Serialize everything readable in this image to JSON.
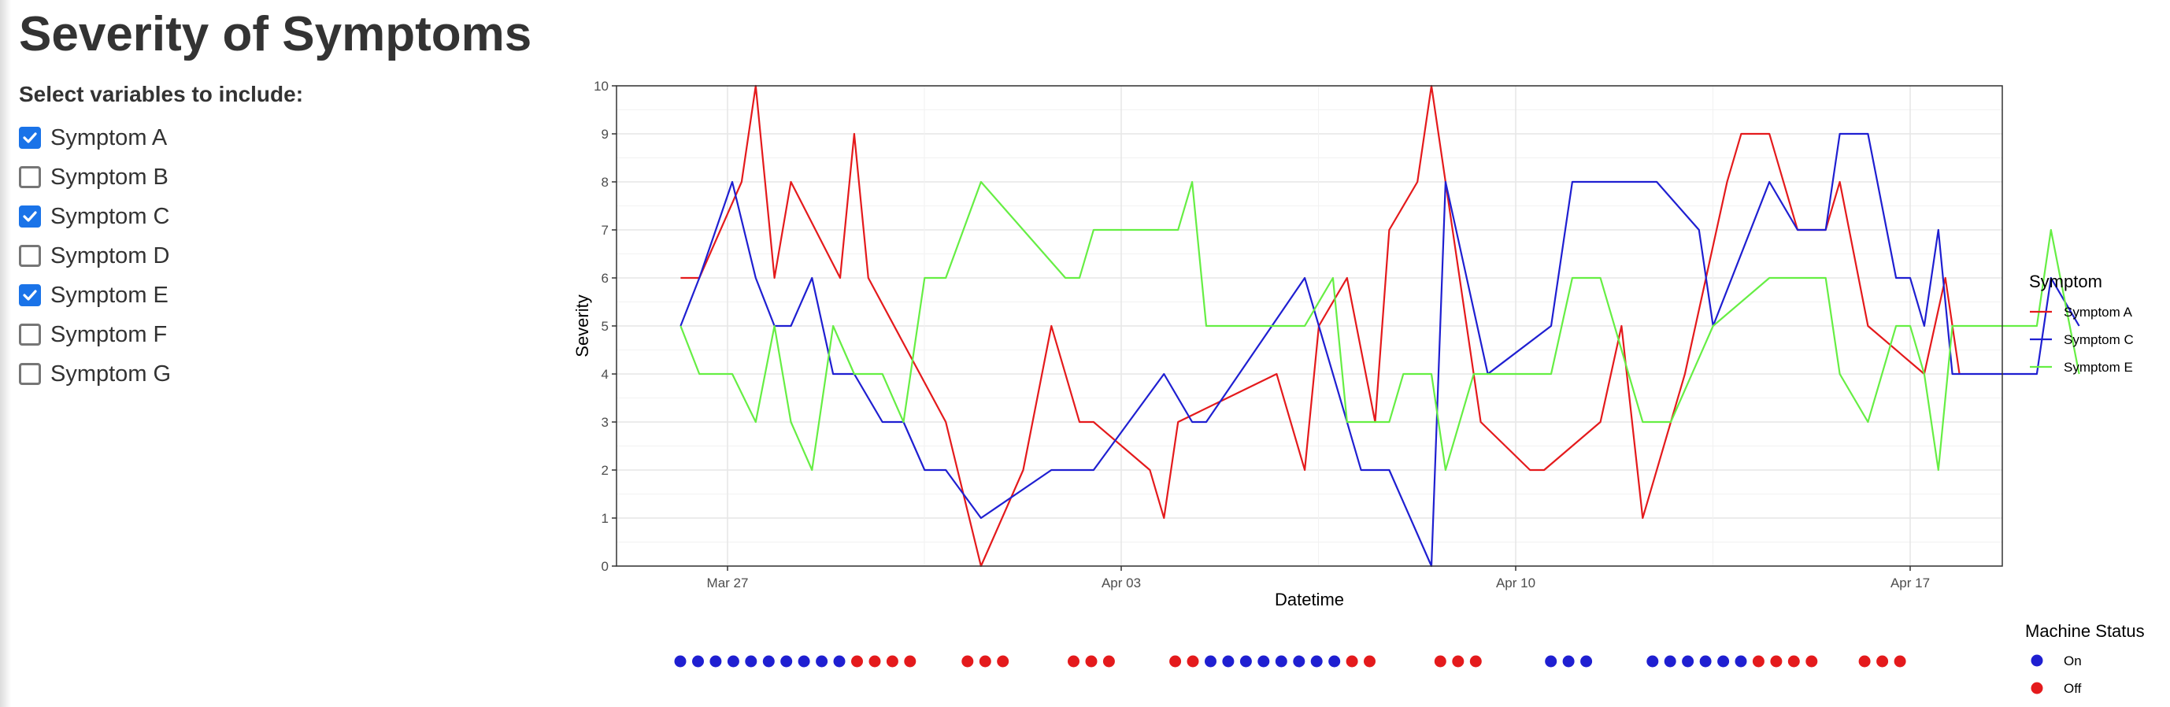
{
  "page": {
    "title": "Severity of Symptoms",
    "select_label": "Select variables to include:"
  },
  "checkboxes": [
    {
      "label": "Symptom A",
      "checked": true
    },
    {
      "label": "Symptom B",
      "checked": false
    },
    {
      "label": "Symptom C",
      "checked": true
    },
    {
      "label": "Symptom D",
      "checked": false
    },
    {
      "label": "Symptom E",
      "checked": true
    },
    {
      "label": "Symptom F",
      "checked": false
    },
    {
      "label": "Symptom G",
      "checked": false
    }
  ],
  "chart_data": [
    {
      "type": "line",
      "xlabel": "Datetime",
      "ylabel": "Severity",
      "x_ticks": [
        "Mar 27",
        "Apr 03",
        "Apr 10",
        "Apr 17"
      ],
      "y_ticks": [
        0,
        1,
        2,
        3,
        4,
        5,
        6,
        7,
        8,
        9,
        10
      ],
      "ylim": [
        0,
        10
      ],
      "grid": true,
      "legend_title": "Symptom",
      "legend_position": "right",
      "series": [
        {
          "name": "Symptom A",
          "color": "#e41a1c",
          "points": [
            [
              "2024-03-26 04:00",
              6
            ],
            [
              "2024-03-26 12:00",
              6
            ],
            [
              "2024-03-27 06:00",
              8
            ],
            [
              "2024-03-27 12:00",
              10
            ],
            [
              "2024-03-27 20:00",
              6
            ],
            [
              "2024-03-28 03:00",
              8
            ],
            [
              "2024-03-29 00:00",
              6
            ],
            [
              "2024-03-29 06:00",
              9
            ],
            [
              "2024-03-29 12:00",
              6
            ],
            [
              "2024-03-30 21:00",
              3
            ],
            [
              "2024-03-31 12:00",
              0
            ],
            [
              "2024-04-01 06:00",
              2
            ],
            [
              "2024-04-01 18:00",
              5
            ],
            [
              "2024-04-02 06:00",
              3
            ],
            [
              "2024-04-02 12:00",
              3
            ],
            [
              "2024-04-03 12:00",
              2
            ],
            [
              "2024-04-03 18:00",
              1
            ],
            [
              "2024-04-04 00:00",
              3
            ],
            [
              "2024-04-05 18:00",
              4
            ],
            [
              "2024-04-06 06:00",
              2
            ],
            [
              "2024-04-06 12:00",
              5
            ],
            [
              "2024-04-07 00:00",
              6
            ],
            [
              "2024-04-07 12:00",
              3
            ],
            [
              "2024-04-07 18:00",
              7
            ],
            [
              "2024-04-08 06:00",
              8
            ],
            [
              "2024-04-08 12:00",
              10
            ],
            [
              "2024-04-09 09:00",
              3
            ],
            [
              "2024-04-10 06:00",
              2
            ],
            [
              "2024-04-10 12:00",
              2
            ],
            [
              "2024-04-11 12:00",
              3
            ],
            [
              "2024-04-11 21:00",
              5
            ],
            [
              "2024-04-12 06:00",
              1
            ],
            [
              "2024-04-13 00:00",
              4
            ],
            [
              "2024-04-13 18:00",
              8
            ],
            [
              "2024-04-14 00:00",
              9
            ],
            [
              "2024-04-14 12:00",
              9
            ],
            [
              "2024-04-15 00:00",
              7
            ],
            [
              "2024-04-15 12:00",
              7
            ],
            [
              "2024-04-15 18:00",
              8
            ],
            [
              "2024-04-16 06:00",
              5
            ],
            [
              "2024-04-17 06:00",
              4
            ],
            [
              "2024-04-17 15:00",
              6
            ],
            [
              "2024-04-17 21:00",
              4
            ]
          ]
        },
        {
          "name": "Symptom C",
          "color": "#1f1fd1",
          "points": [
            [
              "2024-03-26 04:00",
              5
            ],
            [
              "2024-03-26 12:00",
              6
            ],
            [
              "2024-03-27 02:00",
              8
            ],
            [
              "2024-03-27 12:00",
              6
            ],
            [
              "2024-03-27 20:00",
              5
            ],
            [
              "2024-03-28 03:00",
              5
            ],
            [
              "2024-03-28 12:00",
              6
            ],
            [
              "2024-03-28 21:00",
              4
            ],
            [
              "2024-03-29 06:00",
              4
            ],
            [
              "2024-03-29 18:00",
              3
            ],
            [
              "2024-03-30 03:00",
              3
            ],
            [
              "2024-03-30 12:00",
              2
            ],
            [
              "2024-03-30 21:00",
              2
            ],
            [
              "2024-03-31 12:00",
              1
            ],
            [
              "2024-04-01 18:00",
              2
            ],
            [
              "2024-04-02 12:00",
              2
            ],
            [
              "2024-04-03 18:00",
              4
            ],
            [
              "2024-04-04 06:00",
              3
            ],
            [
              "2024-04-04 12:00",
              3
            ],
            [
              "2024-04-06 06:00",
              6
            ],
            [
              "2024-04-07 00:00",
              3
            ],
            [
              "2024-04-07 06:00",
              2
            ],
            [
              "2024-04-07 18:00",
              2
            ],
            [
              "2024-04-08 12:00",
              0
            ],
            [
              "2024-04-08 18:00",
              8
            ],
            [
              "2024-04-09 12:00",
              4
            ],
            [
              "2024-04-10 15:00",
              5
            ],
            [
              "2024-04-11 00:00",
              8
            ],
            [
              "2024-04-12 12:00",
              8
            ],
            [
              "2024-04-13 06:00",
              7
            ],
            [
              "2024-04-13 12:00",
              5
            ],
            [
              "2024-04-14 12:00",
              8
            ],
            [
              "2024-04-15 00:00",
              7
            ],
            [
              "2024-04-15 12:00",
              7
            ],
            [
              "2024-04-15 18:00",
              9
            ],
            [
              "2024-04-16 06:00",
              9
            ],
            [
              "2024-04-16 18:00",
              6
            ],
            [
              "2024-04-17 00:00",
              6
            ],
            [
              "2024-04-17 06:00",
              5
            ],
            [
              "2024-04-17 12:00",
              7
            ],
            [
              "2024-04-17 18:00",
              4
            ],
            [
              "2024-04-19 06:00",
              4
            ],
            [
              "2024-04-19 12:00",
              6
            ],
            [
              "2024-04-20 00:00",
              5
            ]
          ]
        },
        {
          "name": "Symptom E",
          "color": "#66ee44",
          "points": [
            [
              "2024-03-26 04:00",
              5
            ],
            [
              "2024-03-26 12:00",
              4
            ],
            [
              "2024-03-27 02:00",
              4
            ],
            [
              "2024-03-27 12:00",
              3
            ],
            [
              "2024-03-27 20:00",
              5
            ],
            [
              "2024-03-28 03:00",
              3
            ],
            [
              "2024-03-28 12:00",
              2
            ],
            [
              "2024-03-28 21:00",
              5
            ],
            [
              "2024-03-29 06:00",
              4
            ],
            [
              "2024-03-29 18:00",
              4
            ],
            [
              "2024-03-30 03:00",
              3
            ],
            [
              "2024-03-30 12:00",
              6
            ],
            [
              "2024-03-30 21:00",
              6
            ],
            [
              "2024-03-31 12:00",
              8
            ],
            [
              "2024-04-02 00:00",
              6
            ],
            [
              "2024-04-02 06:00",
              6
            ],
            [
              "2024-04-02 12:00",
              7
            ],
            [
              "2024-04-04 00:00",
              7
            ],
            [
              "2024-04-04 06:00",
              8
            ],
            [
              "2024-04-04 12:00",
              5
            ],
            [
              "2024-04-06 06:00",
              5
            ],
            [
              "2024-04-06 18:00",
              6
            ],
            [
              "2024-04-07 00:00",
              3
            ],
            [
              "2024-04-07 18:00",
              3
            ],
            [
              "2024-04-08 00:00",
              4
            ],
            [
              "2024-04-08 12:00",
              4
            ],
            [
              "2024-04-08 18:00",
              2
            ],
            [
              "2024-04-09 06:00",
              4
            ],
            [
              "2024-04-10 15:00",
              4
            ],
            [
              "2024-04-11 00:00",
              6
            ],
            [
              "2024-04-11 12:00",
              6
            ],
            [
              "2024-04-12 06:00",
              3
            ],
            [
              "2024-04-12 18:00",
              3
            ],
            [
              "2024-04-13 12:00",
              5
            ],
            [
              "2024-04-14 12:00",
              6
            ],
            [
              "2024-04-15 12:00",
              6
            ],
            [
              "2024-04-15 18:00",
              4
            ],
            [
              "2024-04-16 06:00",
              3
            ],
            [
              "2024-04-16 18:00",
              5
            ],
            [
              "2024-04-17 00:00",
              5
            ],
            [
              "2024-04-17 06:00",
              4
            ],
            [
              "2024-04-17 12:00",
              2
            ],
            [
              "2024-04-17 18:00",
              5
            ],
            [
              "2024-04-19 06:00",
              5
            ],
            [
              "2024-04-19 12:00",
              7
            ],
            [
              "2024-04-20 00:00",
              4
            ]
          ]
        }
      ]
    },
    {
      "type": "scatter",
      "legend_title": "Machine Status",
      "legend_position": "right",
      "categories": [
        {
          "label": "On",
          "color": "#1f1fd1"
        },
        {
          "label": "Off",
          "color": "#e41a1c"
        }
      ],
      "points": [
        [
          "2024-03-26 00:00",
          "On"
        ],
        [
          "2024-03-26 12:00",
          "On"
        ],
        [
          "2024-03-27 00:00",
          "On"
        ],
        [
          "2024-03-27 12:00",
          "On"
        ],
        [
          "2024-03-28 00:00",
          "On"
        ],
        [
          "2024-03-28 12:00",
          "On"
        ],
        [
          "2024-03-29 00:00",
          "On"
        ],
        [
          "2024-03-29 12:00",
          "On"
        ],
        [
          "2024-03-30 00:00",
          "On"
        ],
        [
          "2024-03-30 12:00",
          "On"
        ],
        [
          "2024-03-31 00:00",
          "Off"
        ],
        [
          "2024-03-31 12:00",
          "Off"
        ],
        [
          "2024-04-01 00:00",
          "Off"
        ],
        [
          "2024-04-01 12:00",
          "Off"
        ],
        [
          "2024-04-03 03:00",
          "Off"
        ],
        [
          "2024-04-03 15:00",
          "Off"
        ],
        [
          "2024-04-04 03:00",
          "Off"
        ],
        [
          "2024-04-06 03:00",
          "Off"
        ],
        [
          "2024-04-06 15:00",
          "Off"
        ],
        [
          "2024-04-07 03:00",
          "Off"
        ],
        [
          "2024-04-09 00:00",
          "Off"
        ],
        [
          "2024-04-09 12:00",
          "Off"
        ],
        [
          "2024-04-10 00:00",
          "On"
        ],
        [
          "2024-04-10 12:00",
          "On"
        ],
        [
          "2024-04-11 00:00",
          "On"
        ],
        [
          "2024-04-11 12:00",
          "On"
        ],
        [
          "2024-04-12 00:00",
          "On"
        ],
        [
          "2024-04-12 12:00",
          "On"
        ],
        [
          "2024-04-13 00:00",
          "On"
        ],
        [
          "2024-04-13 12:00",
          "On"
        ],
        [
          "2024-04-14 00:00",
          "Off"
        ],
        [
          "2024-04-14 12:00",
          "Off"
        ],
        [
          "2024-04-16 12:00",
          "Off"
        ],
        [
          "2024-04-17 00:00",
          "Off"
        ],
        [
          "2024-04-17 12:00",
          "Off"
        ],
        [
          "2024-04-19 15:00",
          "On"
        ],
        [
          "2024-04-20 03:00",
          "On"
        ],
        [
          "2024-04-20 15:00",
          "On"
        ],
        [
          "2024-04-22 12:00",
          "On"
        ],
        [
          "2024-04-23 00:00",
          "On"
        ],
        [
          "2024-04-23 12:00",
          "On"
        ],
        [
          "2024-04-24 00:00",
          "On"
        ],
        [
          "2024-04-24 12:00",
          "On"
        ],
        [
          "2024-04-25 00:00",
          "On"
        ],
        [
          "2024-04-25 12:00",
          "Off"
        ],
        [
          "2024-04-26 00:00",
          "Off"
        ],
        [
          "2024-04-26 12:00",
          "Off"
        ],
        [
          "2024-04-27 00:00",
          "Off"
        ],
        [
          "2024-04-28 12:00",
          "Off"
        ],
        [
          "2024-04-29 00:00",
          "Off"
        ],
        [
          "2024-04-29 12:00",
          "Off"
        ]
      ]
    }
  ]
}
